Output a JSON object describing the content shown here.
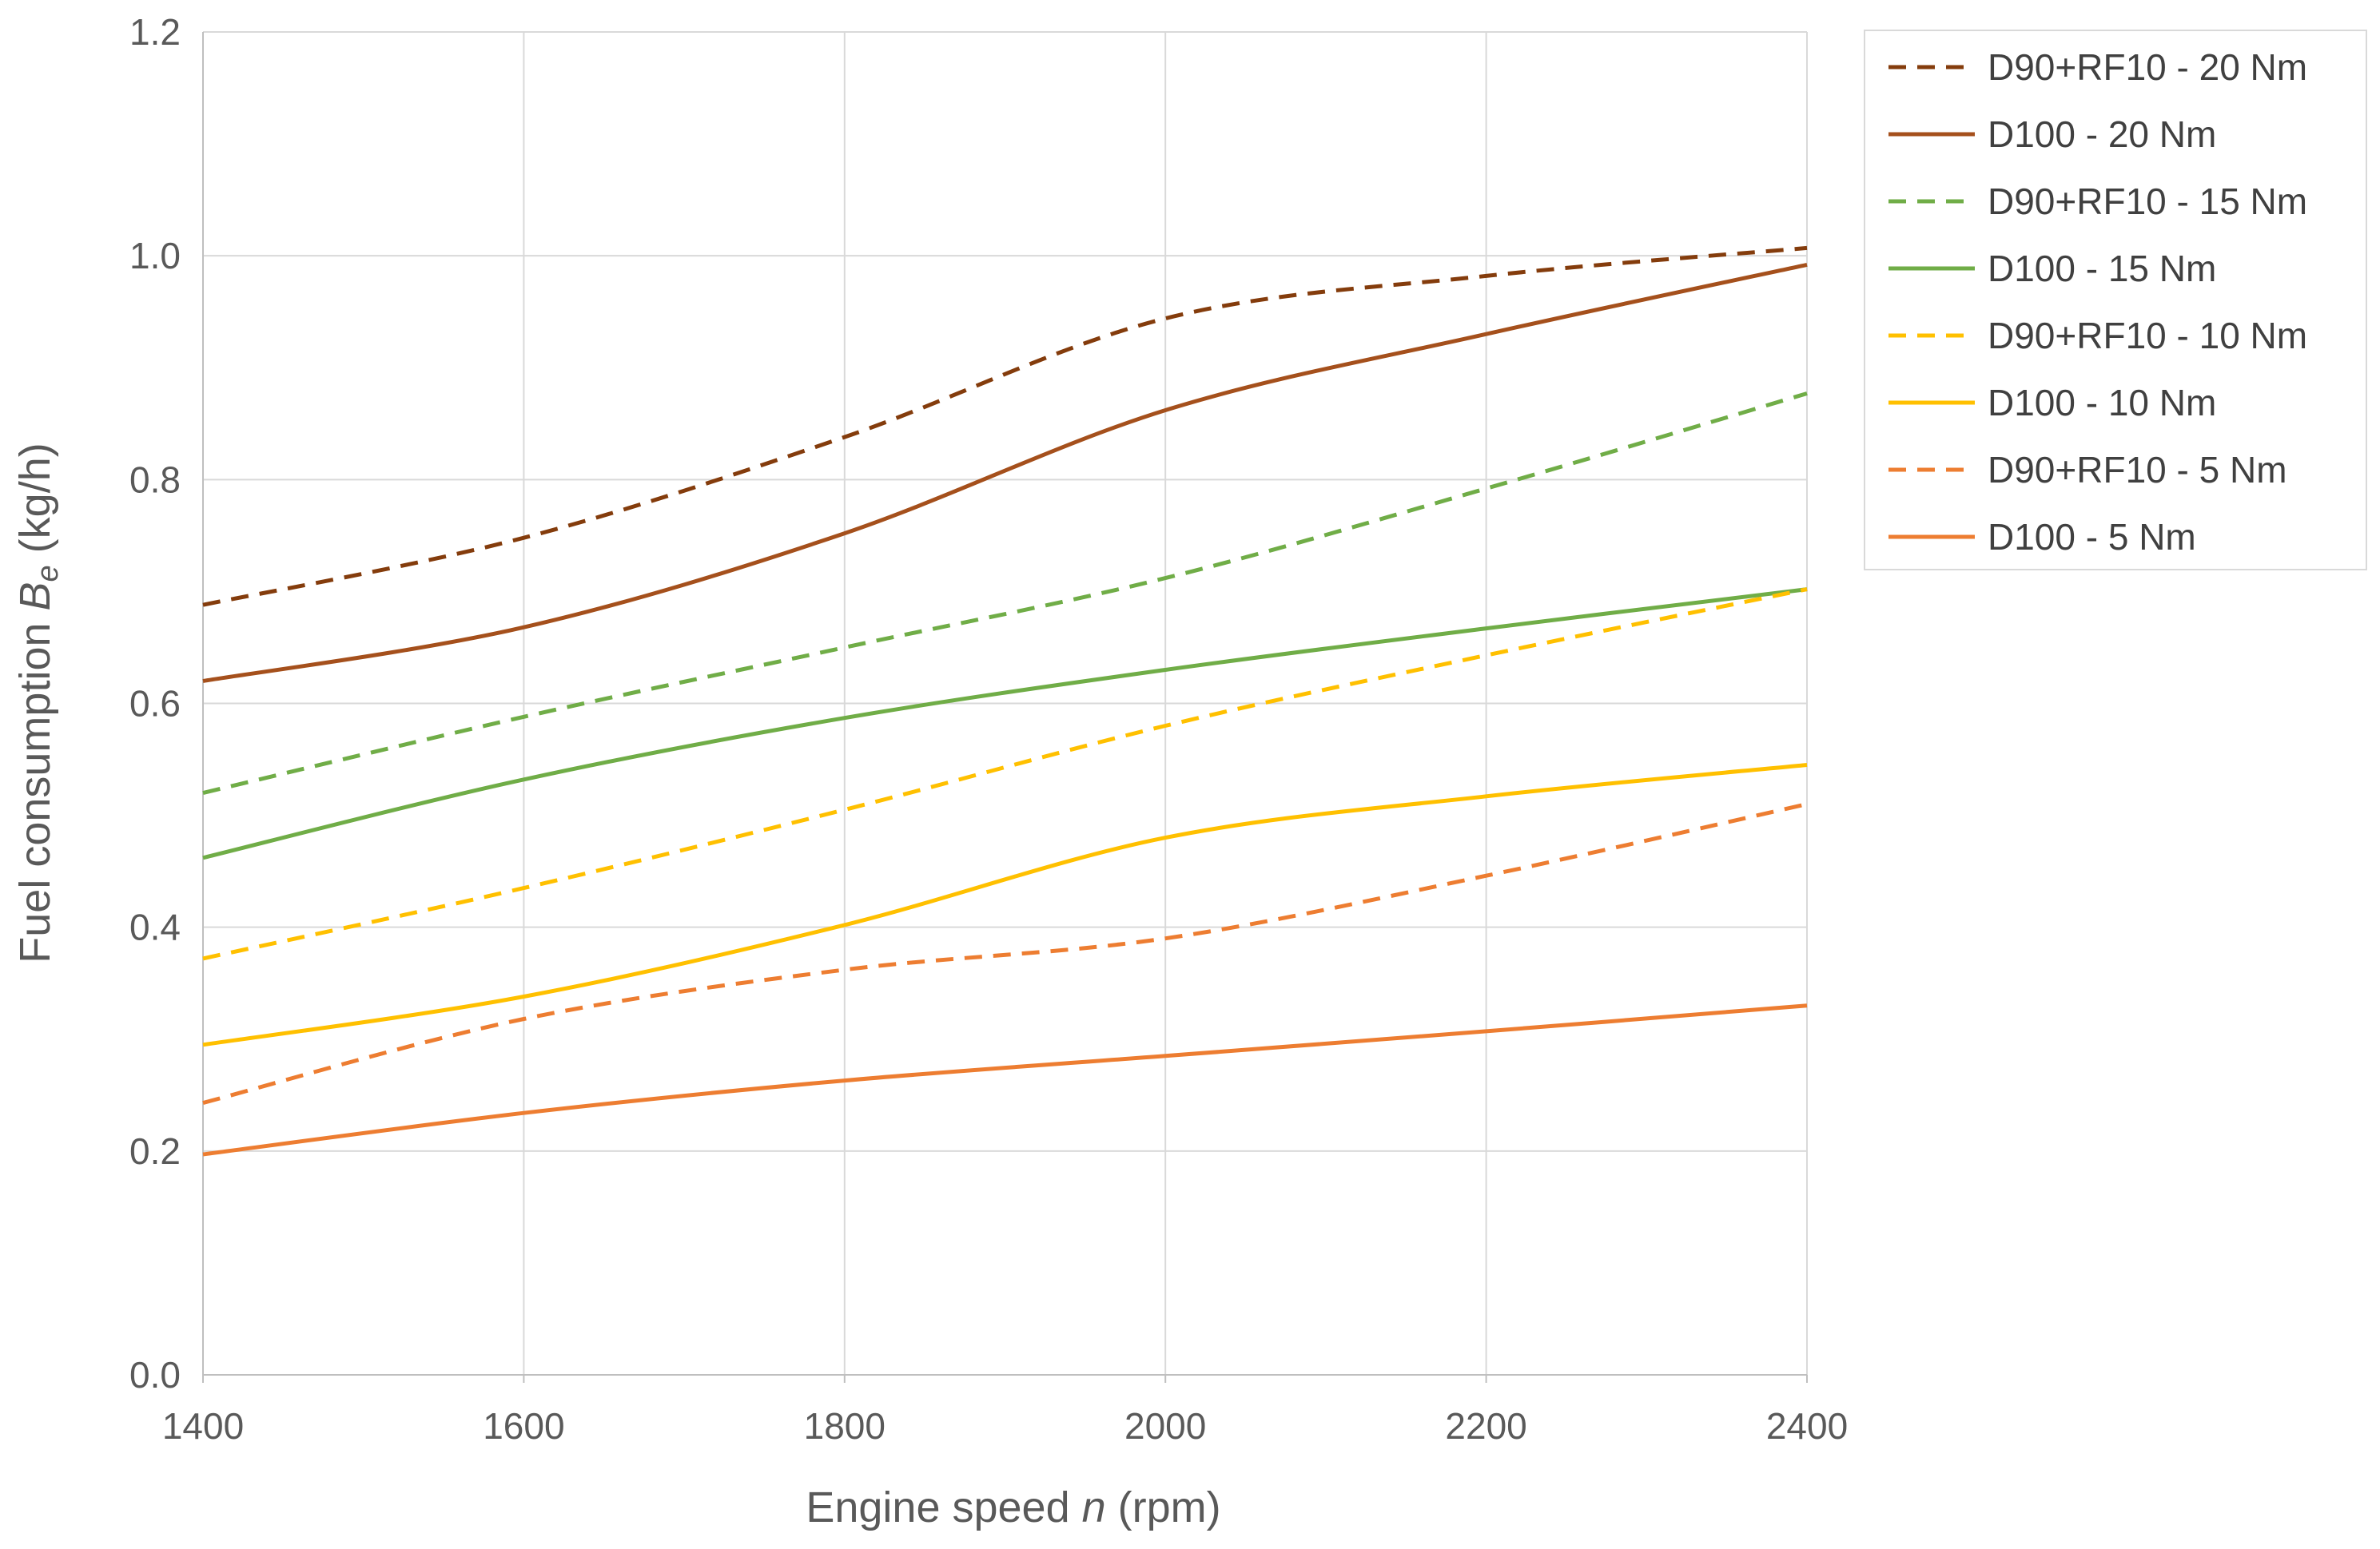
{
  "chart_data": {
    "type": "line",
    "xlabel": {
      "prefix": "Engine speed ",
      "var": "n",
      "suffix": " (rpm)"
    },
    "ylabel": {
      "prefix": "Fuel consumption ",
      "var": "B",
      "sub": "e",
      "suffix": " (kg/h)"
    },
    "xlim": [
      1400,
      2400
    ],
    "ylim": [
      0.0,
      1.2
    ],
    "x_ticks": [
      "1400",
      "1600",
      "1800",
      "2000",
      "2200",
      "2400"
    ],
    "y_ticks": [
      "0.0",
      "0.2",
      "0.4",
      "0.6",
      "0.8",
      "1.0",
      "1.2"
    ],
    "grid": true,
    "legend_position": "right",
    "x": [
      1400,
      1600,
      1800,
      2000,
      2200,
      2400
    ],
    "series": [
      {
        "name": "D90+RF10 - 20 Nm",
        "color": "#843c0c",
        "dash": true,
        "values": [
          0.688,
          0.748,
          0.838,
          0.944,
          0.982,
          1.007
        ]
      },
      {
        "name": "D100 - 20 Nm",
        "color": "#a5501c",
        "dash": false,
        "values": [
          0.62,
          0.668,
          0.752,
          0.862,
          0.93,
          0.992
        ]
      },
      {
        "name": "D90+RF10 - 15 Nm",
        "color": "#70ad47",
        "dash": true,
        "values": [
          0.52,
          0.588,
          0.65,
          0.712,
          0.792,
          0.877
        ]
      },
      {
        "name": "D100 - 15 Nm",
        "color": "#70ad47",
        "dash": false,
        "values": [
          0.462,
          0.532,
          0.587,
          0.63,
          0.667,
          0.702
        ]
      },
      {
        "name": "D90+RF10 - 10 Nm",
        "color": "#ffc000",
        "dash": true,
        "values": [
          0.372,
          0.435,
          0.505,
          0.58,
          0.643,
          0.702
        ]
      },
      {
        "name": "D100 - 10 Nm",
        "color": "#ffc000",
        "dash": false,
        "values": [
          0.295,
          0.338,
          0.402,
          0.48,
          0.517,
          0.545
        ]
      },
      {
        "name": "D90+RF10 - 5 Nm",
        "color": "#ed7d31",
        "dash": true,
        "values": [
          0.243,
          0.318,
          0.362,
          0.39,
          0.446,
          0.51
        ]
      },
      {
        "name": "D100 - 5 Nm",
        "color": "#ed7d31",
        "dash": false,
        "values": [
          0.197,
          0.234,
          0.263,
          0.285,
          0.307,
          0.33
        ]
      }
    ]
  }
}
